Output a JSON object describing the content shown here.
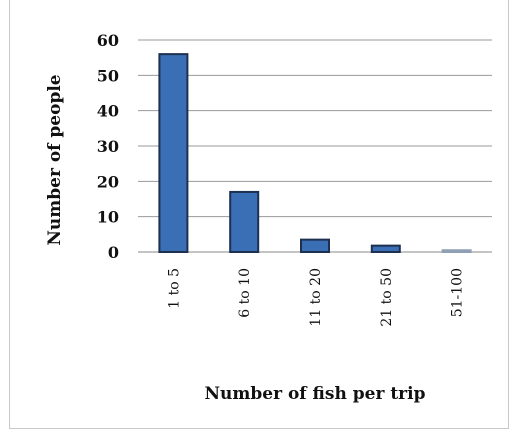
{
  "chart_data": {
    "type": "bar",
    "title": "",
    "xlabel": "Number of fish per trip",
    "ylabel": "Number of people",
    "categories": [
      "1 to 5",
      "6 to 10",
      "11 to 20",
      "21 to 50",
      "51-100"
    ],
    "values": [
      56,
      17,
      3.5,
      1.8,
      0.5
    ],
    "ylim": [
      0,
      60
    ],
    "yticks": [
      "0",
      "10",
      "20",
      "30",
      "40",
      "50",
      "60"
    ],
    "grid": true,
    "bar_color": "#3a6fb6",
    "bar_edge_color": "#1d3050",
    "last_bar_color": "#a8b6c8"
  }
}
